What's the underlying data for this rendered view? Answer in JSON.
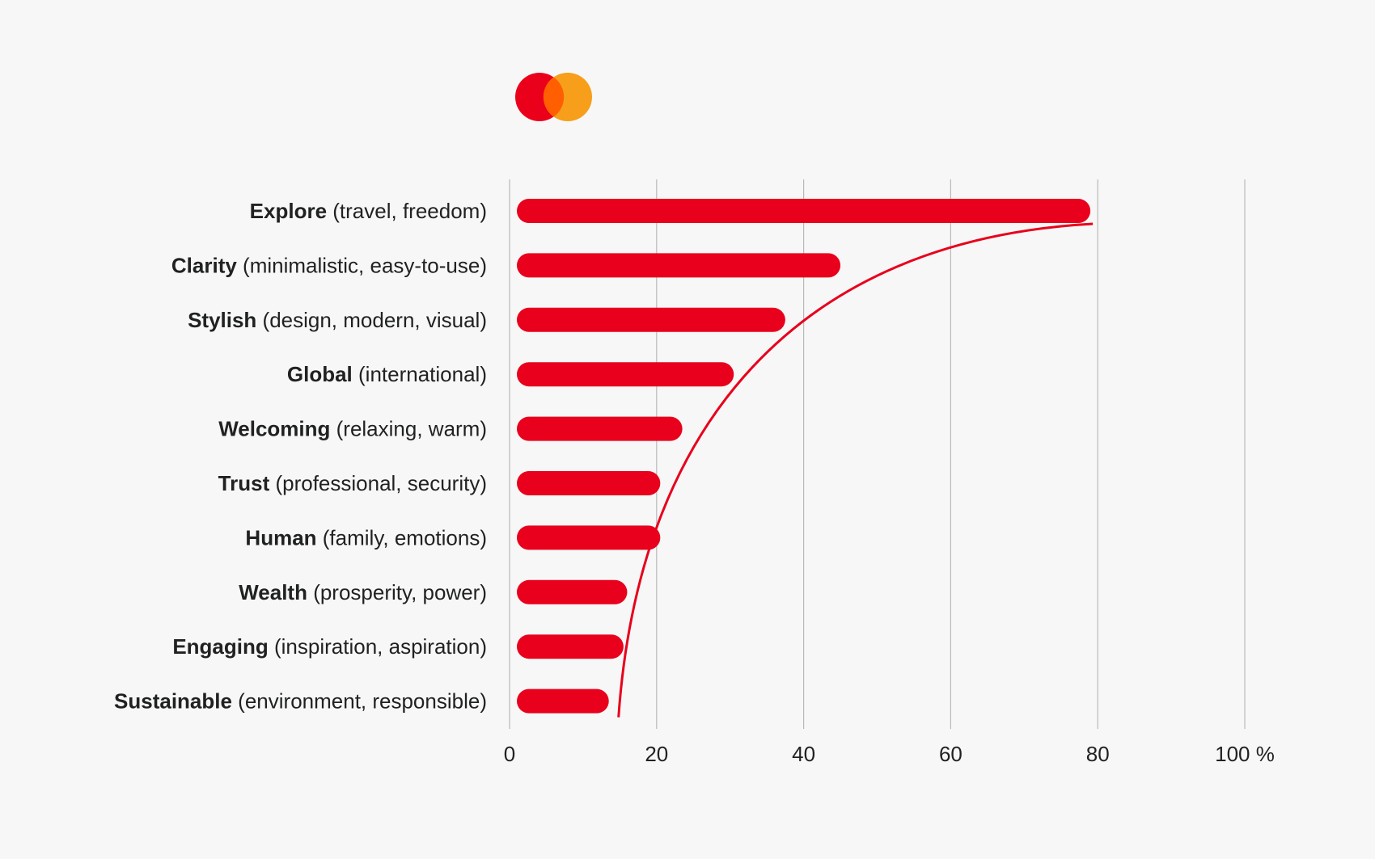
{
  "logo": {
    "name": "mastercard-logo",
    "colors": {
      "left": "#eb001b",
      "right": "#f79e1b",
      "overlap": "#ff5f00"
    }
  },
  "chart_data": {
    "type": "bar",
    "orientation": "horizontal",
    "categories": [
      {
        "bold": "Explore",
        "rest": "(travel, freedom)"
      },
      {
        "bold": "Clarity",
        "rest": "(minimalistic, easy-to-use)"
      },
      {
        "bold": "Stylish",
        "rest": "(design, modern, visual)"
      },
      {
        "bold": "Global",
        "rest": "(international)"
      },
      {
        "bold": "Welcoming",
        "rest": "(relaxing, warm)"
      },
      {
        "bold": "Trust",
        "rest": "(professional, security)"
      },
      {
        "bold": "Human",
        "rest": "(family, emotions)"
      },
      {
        "bold": "Wealth",
        "rest": "(prosperity, power)"
      },
      {
        "bold": "Engaging",
        "rest": "(inspiration, aspiration)"
      },
      {
        "bold": "Sustainable",
        "rest": "(environment, responsible)"
      }
    ],
    "values": [
      79,
      45,
      37.5,
      30.5,
      23.5,
      20.5,
      20.5,
      16,
      15.5,
      13.5
    ],
    "xlim": [
      0,
      100
    ],
    "xticks": [
      0,
      20,
      40,
      60,
      80,
      100
    ],
    "xtick_labels": [
      "0",
      "20",
      "40",
      "60",
      "80",
      "100 %"
    ],
    "grid": "vertical",
    "trend_line": true,
    "bar_color": "#e8001c",
    "line_color": "#e8001c",
    "grid_color": "#b9b9b9",
    "text_color": "#1f2220"
  }
}
